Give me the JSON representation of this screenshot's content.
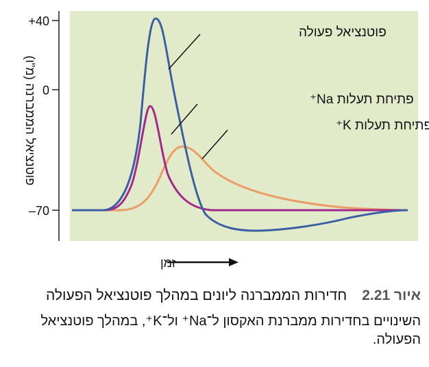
{
  "y_axis": {
    "label": "פוטנציאל הממברנה (מ\"ו)",
    "ticks": [
      "+40",
      "0",
      "–70"
    ]
  },
  "x_axis": {
    "label": "זמן"
  },
  "curve_labels": {
    "action_potential": "פוטנציאל פעולה",
    "na_channels": "פתיחת תעלות Na⁺",
    "k_channels": "פתיחת תעלות K⁺"
  },
  "colors": {
    "plot_background": "#e2ebc9",
    "action_potential": "#3a5fa3",
    "na_channels": "#a3288e",
    "k_channels": "#eb9c67",
    "axis": "#222222"
  },
  "caption": {
    "number": "איור 2.21",
    "title": "חדירות הממברנה ליונים במהלך פוטנציאל הפעולה",
    "body": "השינויים בחדירות ממברנת האקסון ל־Na⁺ ול־K⁺, במהלך פוטנציאל הפעולה."
  }
}
